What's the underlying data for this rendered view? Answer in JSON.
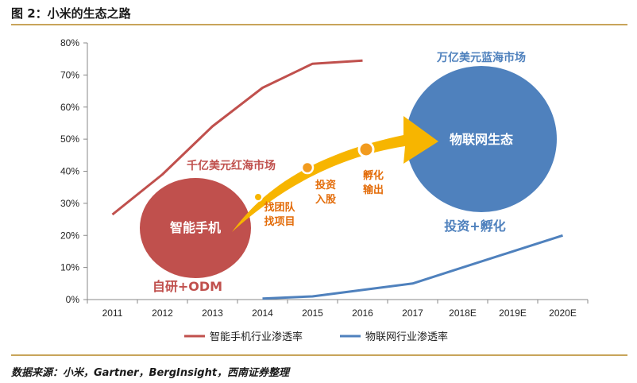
{
  "figure": {
    "title": "图 2：小米的生态之路",
    "source": "数据来源：小米，Gartner，BergInsight，西南证券整理",
    "colors": {
      "rule": "#c8a45a",
      "smartphone": "#c0504d",
      "iot": "#4f81bd",
      "arrow": "#f7b500",
      "annotation": "#e36c09"
    }
  },
  "chart_data": {
    "type": "line",
    "x": [
      "2011",
      "2012",
      "2013",
      "2014",
      "2015",
      "2016",
      "2017",
      "2018E",
      "2019E",
      "2020E"
    ],
    "ylim": [
      0,
      80
    ],
    "yticks": [
      "0%",
      "10%",
      "20%",
      "30%",
      "40%",
      "50%",
      "60%",
      "70%",
      "80%"
    ],
    "grid": false,
    "legend_position": "bottom",
    "series": [
      {
        "name": "智能手机行业渗透率",
        "color": "#c0504d",
        "values": [
          26.5,
          39,
          54,
          66,
          73.5,
          74.5,
          null,
          null,
          null,
          null
        ]
      },
      {
        "name": "物联网行业渗透率",
        "color": "#4f81bd",
        "values": [
          null,
          null,
          null,
          0.3,
          1,
          3,
          5,
          10,
          15,
          20
        ]
      }
    ],
    "annotations": {
      "red_circle": "智能手机",
      "red_market": "千亿美元红海市场",
      "red_strategy": "自研+ODM",
      "blue_circle": "物联网生态",
      "blue_market": "万亿美元蓝海市场",
      "blue_strategy": "投资+孵化",
      "step1": [
        "找团队",
        "找项目"
      ],
      "step2": [
        "投资",
        "入股"
      ],
      "step3": [
        "孵化",
        "输出"
      ]
    }
  }
}
